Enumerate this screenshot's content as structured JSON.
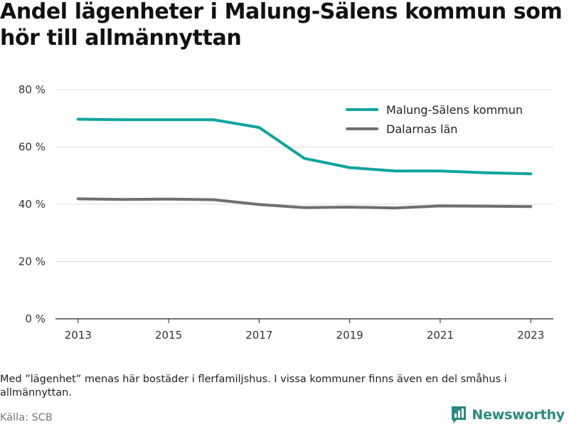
{
  "title": "Andel lägenheter i Malung-Sälens kommun som hör till allmännyttan",
  "note": "Med ”lägenhet” menas här bostäder i flerfamiljshus. I vissa kommuner finns även en del småhus i allmännyttan.",
  "source": "Källa: SCB",
  "brand": {
    "name": "Newsworthy",
    "logo_icon": "newsworthy-logo-icon",
    "color": "#2a8a82"
  },
  "chart_data": {
    "type": "line",
    "title": "Andel lägenheter i Malung-Sälens kommun som hör till allmännyttan",
    "x": [
      2013,
      2014,
      2015,
      2016,
      2017,
      2018,
      2019,
      2020,
      2021,
      2022,
      2023
    ],
    "xticks": [
      2013,
      2015,
      2017,
      2019,
      2021,
      2023
    ],
    "yticks": [
      0,
      20,
      40,
      60,
      80
    ],
    "ytick_suffix": " %",
    "ylim": [
      0,
      80
    ],
    "xlim": [
      2012.5,
      2023.5
    ],
    "grid": true,
    "legend_position": "top-right",
    "series": [
      {
        "name": "Malung-Sälens kommun",
        "color": "#0ea49e",
        "values": [
          69.7,
          69.5,
          69.5,
          69.5,
          66.8,
          56.0,
          52.8,
          51.6,
          51.6,
          51.0,
          50.6
        ]
      },
      {
        "name": "Dalarnas län",
        "color": "#6f6f6f",
        "values": [
          41.9,
          41.7,
          41.8,
          41.6,
          39.9,
          38.8,
          39.0,
          38.7,
          39.4,
          39.3,
          39.2
        ]
      }
    ]
  }
}
